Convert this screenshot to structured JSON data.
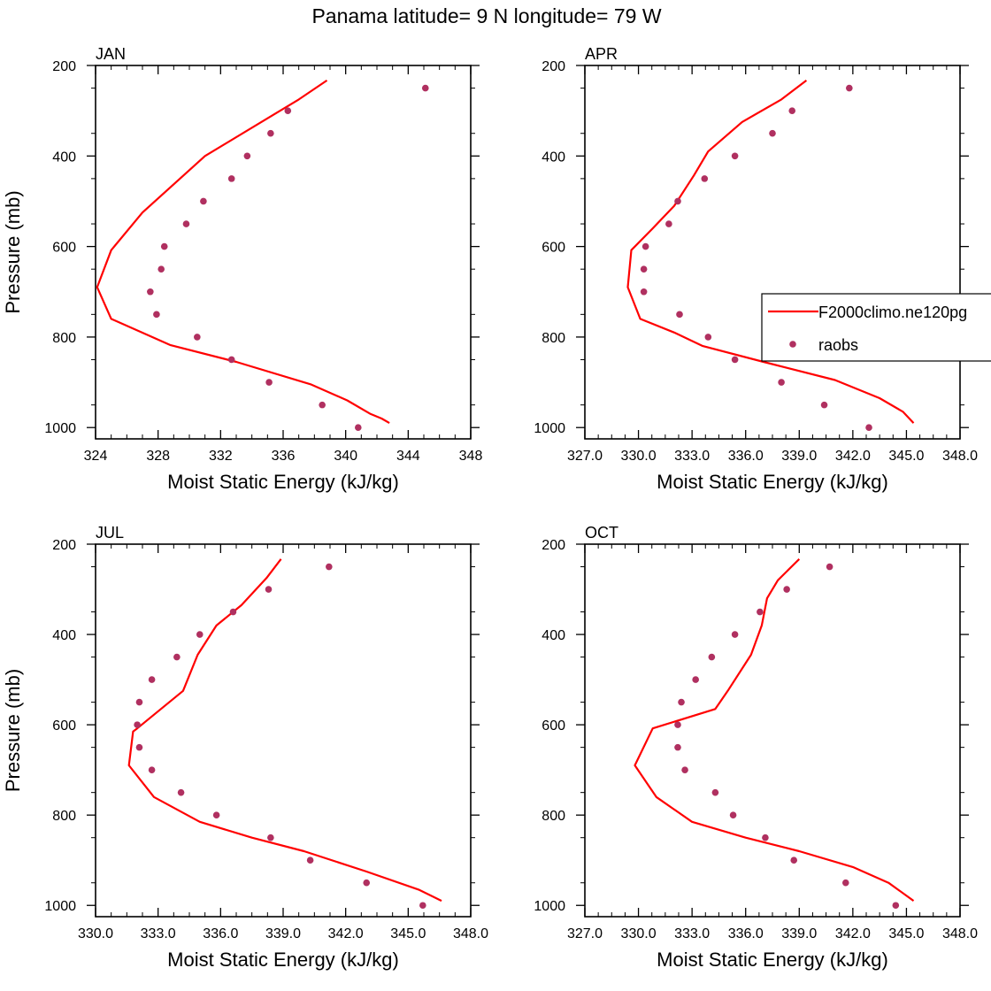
{
  "title": "Panama  latitude= 9 N longitude= 79 W",
  "colors": {
    "model_line": "#ff0000",
    "obs_marker": "#b03060",
    "axis": "#000000"
  },
  "legend": {
    "placement": "right of APR panel",
    "entries": [
      {
        "label": "F2000climo.ne120pg",
        "kind": "line"
      },
      {
        "label": "raobs",
        "kind": "marker"
      }
    ]
  },
  "chart_data": [
    {
      "type": "line",
      "panel": "JAN",
      "xlabel": "Moist Static Energy (kJ/kg)",
      "ylabel": "Pressure (mb)",
      "xlim": [
        324,
        348
      ],
      "xticks": [
        324,
        328,
        332,
        336,
        340,
        344,
        348
      ],
      "xtick_labels": [
        "324",
        "328",
        "332",
        "336",
        "340",
        "344",
        "348"
      ],
      "ylim": [
        200,
        1025
      ],
      "yticks": [
        200,
        400,
        600,
        800,
        1000
      ],
      "y_inverted": true,
      "series": [
        {
          "name": "F2000climo.ne120pg",
          "kind": "line",
          "x": [
            338.8,
            337.0,
            331.0,
            327.0,
            325.0,
            324.1,
            325.0,
            328.8,
            333.0,
            337.8,
            340.1,
            341.6,
            342.3,
            342.8
          ],
          "y": [
            233,
            275,
            400,
            525,
            608,
            690,
            760,
            818,
            855,
            905,
            940,
            970,
            980,
            990
          ]
        },
        {
          "name": "raobs",
          "kind": "scatter",
          "x": [
            345.1,
            336.3,
            335.2,
            333.7,
            332.7,
            330.9,
            329.8,
            328.4,
            328.2,
            327.5,
            327.9,
            330.5,
            332.7,
            335.1,
            338.5,
            340.8
          ],
          "y": [
            250,
            300,
            350,
            400,
            450,
            500,
            550,
            600,
            650,
            700,
            750,
            800,
            850,
            900,
            950,
            1000
          ]
        }
      ]
    },
    {
      "type": "line",
      "panel": "APR",
      "xlabel": "Moist Static Energy (kJ/kg)",
      "ylabel": "",
      "xlim": [
        327,
        348
      ],
      "xticks": [
        327,
        330,
        333,
        336,
        339,
        342,
        345,
        348
      ],
      "xtick_labels": [
        "327.0",
        "330.0",
        "333.0",
        "336.0",
        "339.0",
        "342.0",
        "345.0",
        "348.0"
      ],
      "ylim": [
        200,
        1025
      ],
      "yticks": [
        200,
        400,
        600,
        800,
        1000
      ],
      "y_inverted": true,
      "series": [
        {
          "name": "F2000climo.ne120pg",
          "kind": "line",
          "x": [
            339.4,
            338.0,
            335.8,
            333.9,
            333.1,
            332.0,
            330.8,
            329.6,
            329.4,
            330.1,
            332.0,
            333.6,
            337.0,
            341.0,
            343.5,
            344.8,
            345.4
          ],
          "y": [
            233,
            275,
            325,
            390,
            443,
            510,
            560,
            608,
            690,
            760,
            790,
            820,
            855,
            895,
            935,
            965,
            990
          ]
        },
        {
          "name": "raobs",
          "kind": "scatter",
          "x": [
            341.8,
            338.6,
            337.5,
            335.4,
            333.7,
            332.2,
            331.7,
            330.4,
            330.3,
            330.3,
            332.3,
            333.9,
            335.4,
            338.0,
            340.4,
            342.9
          ],
          "y": [
            250,
            300,
            350,
            400,
            450,
            500,
            550,
            600,
            650,
            700,
            750,
            800,
            850,
            900,
            950,
            1000
          ]
        }
      ]
    },
    {
      "type": "line",
      "panel": "JUL",
      "xlabel": "Moist Static Energy (kJ/kg)",
      "ylabel": "Pressure (mb)",
      "xlim": [
        330,
        348
      ],
      "xticks": [
        330,
        333,
        336,
        339,
        342,
        345,
        348
      ],
      "xtick_labels": [
        "330.0",
        "333.0",
        "336.0",
        "339.0",
        "342.0",
        "345.0",
        "348.0"
      ],
      "ylim": [
        200,
        1025
      ],
      "yticks": [
        200,
        400,
        600,
        800,
        1000
      ],
      "y_inverted": true,
      "series": [
        {
          "name": "F2000climo.ne120pg",
          "kind": "line",
          "x": [
            338.9,
            338.2,
            337.0,
            335.8,
            334.9,
            334.2,
            332.0,
            331.8,
            331.6,
            332.8,
            335.0,
            337.5,
            340.0,
            343.0,
            345.5,
            346.6
          ],
          "y": [
            233,
            275,
            335,
            380,
            445,
            525,
            608,
            615,
            690,
            760,
            815,
            850,
            880,
            925,
            965,
            990
          ]
        },
        {
          "name": "raobs",
          "kind": "scatter",
          "x": [
            341.2,
            338.3,
            336.6,
            335.0,
            333.9,
            332.7,
            332.1,
            332.0,
            332.1,
            332.7,
            334.1,
            335.8,
            338.4,
            340.3,
            343.0,
            345.7
          ],
          "y": [
            250,
            300,
            350,
            400,
            450,
            500,
            550,
            600,
            650,
            700,
            750,
            800,
            850,
            900,
            950,
            1000
          ]
        }
      ]
    },
    {
      "type": "line",
      "panel": "OCT",
      "xlabel": "Moist Static Energy (kJ/kg)",
      "ylabel": "",
      "xlim": [
        327,
        348
      ],
      "xticks": [
        327,
        330,
        333,
        336,
        339,
        342,
        345,
        348
      ],
      "xtick_labels": [
        "327.0",
        "330.0",
        "333.0",
        "336.0",
        "339.0",
        "342.0",
        "345.0",
        "348.0"
      ],
      "ylim": [
        200,
        1025
      ],
      "yticks": [
        200,
        400,
        600,
        800,
        1000
      ],
      "y_inverted": true,
      "series": [
        {
          "name": "F2000climo.ne120pg",
          "kind": "line",
          "x": [
            339.0,
            337.8,
            337.2,
            336.9,
            336.3,
            335.0,
            334.3,
            330.8,
            329.8,
            331.0,
            333.0,
            336.0,
            339.0,
            342.0,
            344.0,
            345.4
          ],
          "y": [
            233,
            280,
            320,
            380,
            445,
            525,
            565,
            608,
            690,
            760,
            815,
            850,
            880,
            915,
            950,
            990
          ]
        },
        {
          "name": "raobs",
          "kind": "scatter",
          "x": [
            340.7,
            338.3,
            336.8,
            335.4,
            334.1,
            333.2,
            332.4,
            332.2,
            332.2,
            332.6,
            334.3,
            335.3,
            337.1,
            338.7,
            341.6,
            344.4
          ],
          "y": [
            250,
            300,
            350,
            400,
            450,
            500,
            550,
            600,
            650,
            700,
            750,
            800,
            850,
            900,
            950,
            1000
          ]
        }
      ]
    }
  ]
}
